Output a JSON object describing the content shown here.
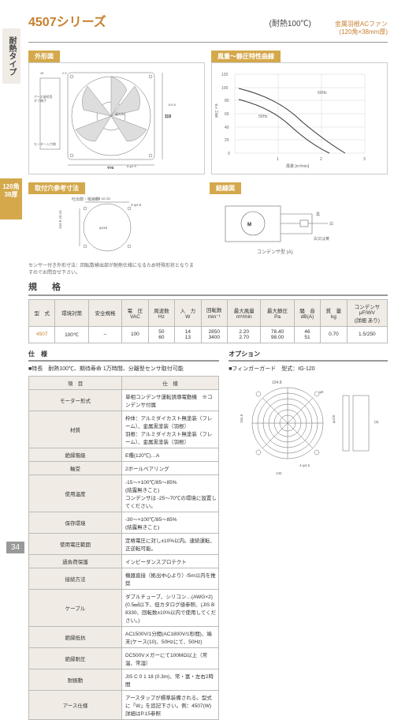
{
  "page": {
    "number": "34"
  },
  "sidebar": {
    "label1": "耐熱タイプ",
    "label2": "120角38厚"
  },
  "header": {
    "title": "4507シリーズ",
    "mid": "(耐熱100℃)",
    "right_l1": "金属羽根ACファン",
    "right_l2": "(120角×38mm厚)"
  },
  "sections": {
    "outline": "外形図",
    "curve": "風量～静圧特性曲線",
    "mount": "取付穴参考寸法",
    "conn": "結線図",
    "spec": "規　格",
    "detail": "仕　様",
    "option": "オプション"
  },
  "outline": {
    "dims": {
      "w": "38",
      "gap": "2.5",
      "sq": "119",
      "hole": "8-φ4.5",
      "in": "104.8",
      "d": "φ116"
    },
    "labels": {
      "earth": "アース接続用タブ端子",
      "motor": "モーター入力線",
      "wind": "風方向"
    }
  },
  "curve": {
    "ylabel": "静圧 Pa",
    "xlabel": "風量 [m³/min]",
    "yticks": [
      "0",
      "20",
      "40",
      "60",
      "80",
      "100",
      "120"
    ],
    "xticks": [
      "0",
      "1",
      "2",
      "3"
    ],
    "line1": "60Hz",
    "line2": "50Hz"
  },
  "mount": {
    "label1": "吐出側・吸込側",
    "d1": "104.8 ±0.15",
    "d2": "4-φ4.8",
    "hole": "φ116",
    "sq": "104.8 ±0.15"
  },
  "conn": {
    "colors": {
      "k": "黒",
      "w": "白",
      "y": "白又は黄"
    },
    "cap": "コンデンサ型 (A)"
  },
  "spec_table": {
    "headers": [
      "型　式",
      "環境対策",
      "安全規格",
      "電　圧\nVAC",
      "周波数\nHz",
      "入　力\nW",
      "回転数\nmin⁻¹",
      "最大風量\nm³/min",
      "最大静圧\nPa",
      "騒　音\ndB(A)",
      "質　量\nkg",
      "コンデンサ\nμF/WV\n(詳細 あり)"
    ],
    "row": [
      "4507",
      "100℃",
      "–",
      "100",
      "50\n60",
      "14\n13",
      "2850\n3400",
      "2.20\n2.70",
      "78.40\n98.00",
      "46\n51",
      "0.70",
      "1.5/250"
    ]
  },
  "feature": "■特長　耐熱100℃、期待寿命 1万時間、分離型センサ取付可能",
  "detail_table": {
    "h1": "項　目",
    "h2": "仕　様",
    "rows": [
      [
        "モーター形式",
        "単相コンデンサ運転誘導電動機　※コンデンサ付属"
      ],
      [
        "材質",
        "枠体：アルミダイカスト無塗装（フレーム）、金属黒塗装（羽根）\n羽根：アルミダイカスト無塗装（フレーム）、金属黒塗装（羽根）"
      ],
      [
        "絶縁階級",
        "E種(120℃)…A"
      ],
      [
        "軸受",
        "2ボールベアリング"
      ],
      [
        "使用温度",
        "-15～+100℃/85～85%　　　　　　　(結露無きこと)\nコンデンサは -25～70℃の環境に設置してください。"
      ],
      [
        "保存環境",
        "-30～+100℃/85～85%　　　　　　　(結露無きこと)"
      ],
      [
        "使用電圧範囲",
        "定格電圧に対し±10%以内。連続運転、正逆転可能。"
      ],
      [
        "過負荷保護",
        "インピーダンスプロテクト"
      ],
      [
        "接続方法",
        "機器直接（拠出中心より）/5m以内を推奨"
      ],
      [
        "ケーブル",
        "ダブルチューブ、シリコン…(AWG×2)(0.5㎟以下、但カタログ値参照、(JIS B 8330、回転数±10%以内で使用してください。)"
      ],
      [
        "絶縁抵抗",
        "AC1500V/1分間(AC1800V/1秒間)、端末(ケース(10)、50Hzにて、50Hz)"
      ],
      [
        "絶縁耐圧",
        "DC500Vメガーにて100MΩ以上（常温、常湿）"
      ],
      [
        "耐振動",
        "JIS C 0 1 18 (0.3m)、常・富・左右2時間"
      ],
      [
        "アース仕様",
        "アースタップが標準装備される。型式に「W」を追記下さい。例：4507(W)　詳細はP.15参照"
      ]
    ]
  },
  "option": {
    "title": "■フィンガーガード　型式：IG-120"
  },
  "guard": {
    "d1": "104.8",
    "d2": "φ8",
    "h": "(9)",
    "holes": "4-φ4.6",
    "sq": "104.8",
    "out": "130",
    "d3": "φ120",
    "d4": "φ130"
  },
  "mount_note": "センサー付き外形寸法：回転数検出部が耐熱仕様になるため特殊形状となりますのでお問合せ下さい。",
  "colors": {
    "accent": "#c77f2e",
    "gold": "#d4a84b",
    "beige": "#f0ece5"
  }
}
